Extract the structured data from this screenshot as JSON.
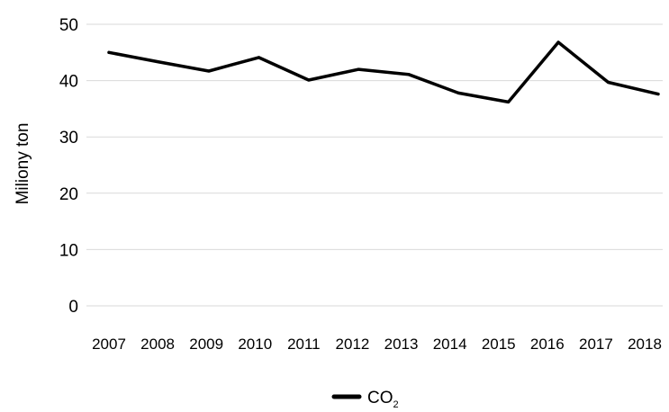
{
  "chart_data": {
    "type": "line",
    "title": "",
    "xlabel": "",
    "ylabel": "Miliony ton",
    "ylim": [
      0,
      50
    ],
    "yticks": [
      "0",
      "10",
      "20",
      "30",
      "40",
      "50"
    ],
    "grid": true,
    "legend_position": "bottom",
    "x": [
      "2007",
      "2008",
      "2009",
      "2010",
      "2011",
      "2012",
      "2013",
      "2014",
      "2015",
      "2016",
      "2017",
      "2018"
    ],
    "series": [
      {
        "name": "CO",
        "name_subscript": "2",
        "color": "#000000",
        "values": [
          45.0,
          43.3,
          41.7,
          44.1,
          40.1,
          42.0,
          41.1,
          37.8,
          36.2,
          46.8,
          39.7,
          37.6
        ]
      }
    ]
  }
}
